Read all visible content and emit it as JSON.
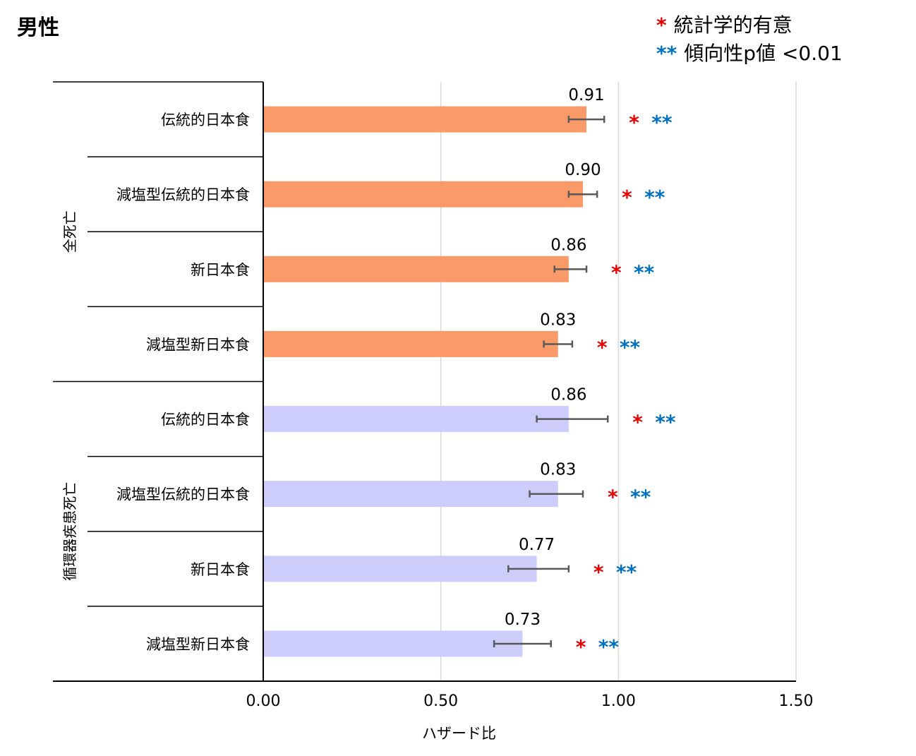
{
  "title": "男性",
  "legend": {
    "sig_marker": "*",
    "sig_label": "統計学的有意",
    "trend_marker": "**",
    "trend_label": "傾向性p値 <0.01",
    "colors": {
      "sig": "#e60000",
      "trend": "#0070c0"
    }
  },
  "chart_data": {
    "type": "bar",
    "orientation": "horizontal",
    "xlabel": "ハザード比",
    "xlim": [
      0,
      1.5
    ],
    "xticks": [
      "0.00",
      "0.50",
      "1.00",
      "1.50"
    ],
    "grid": true,
    "groups": [
      {
        "name": "全死亡",
        "color": "#fa9a68"
      },
      {
        "name": "循環器疾患死亡",
        "color": "#cccdfb"
      }
    ],
    "rows": [
      {
        "group": 0,
        "label": "伝統的日本食",
        "value": 0.91,
        "value_label": "0.91",
        "ci": [
          0.86,
          0.96
        ],
        "sig": "*",
        "trend": "**"
      },
      {
        "group": 0,
        "label": "減塩型伝統的日本食",
        "value": 0.9,
        "value_label": "0.90",
        "ci": [
          0.86,
          0.94
        ],
        "sig": "*",
        "trend": "**"
      },
      {
        "group": 0,
        "label": "新日本食",
        "value": 0.86,
        "value_label": "0.86",
        "ci": [
          0.82,
          0.91
        ],
        "sig": "*",
        "trend": "**"
      },
      {
        "group": 0,
        "label": "減塩型新日本食",
        "value": 0.83,
        "value_label": "0.83",
        "ci": [
          0.79,
          0.87
        ],
        "sig": "*",
        "trend": "**"
      },
      {
        "group": 1,
        "label": "伝統的日本食",
        "value": 0.86,
        "value_label": "0.86",
        "ci": [
          0.77,
          0.97
        ],
        "sig": "*",
        "trend": "**"
      },
      {
        "group": 1,
        "label": "減塩型伝統的日本食",
        "value": 0.83,
        "value_label": "0.83",
        "ci": [
          0.75,
          0.9
        ],
        "sig": "*",
        "trend": "**"
      },
      {
        "group": 1,
        "label": "新日本食",
        "value": 0.77,
        "value_label": "0.77",
        "ci": [
          0.69,
          0.86
        ],
        "sig": "*",
        "trend": "**"
      },
      {
        "group": 1,
        "label": "減塩型新日本食",
        "value": 0.73,
        "value_label": "0.73",
        "ci": [
          0.65,
          0.81
        ],
        "sig": "*",
        "trend": "**"
      }
    ]
  }
}
